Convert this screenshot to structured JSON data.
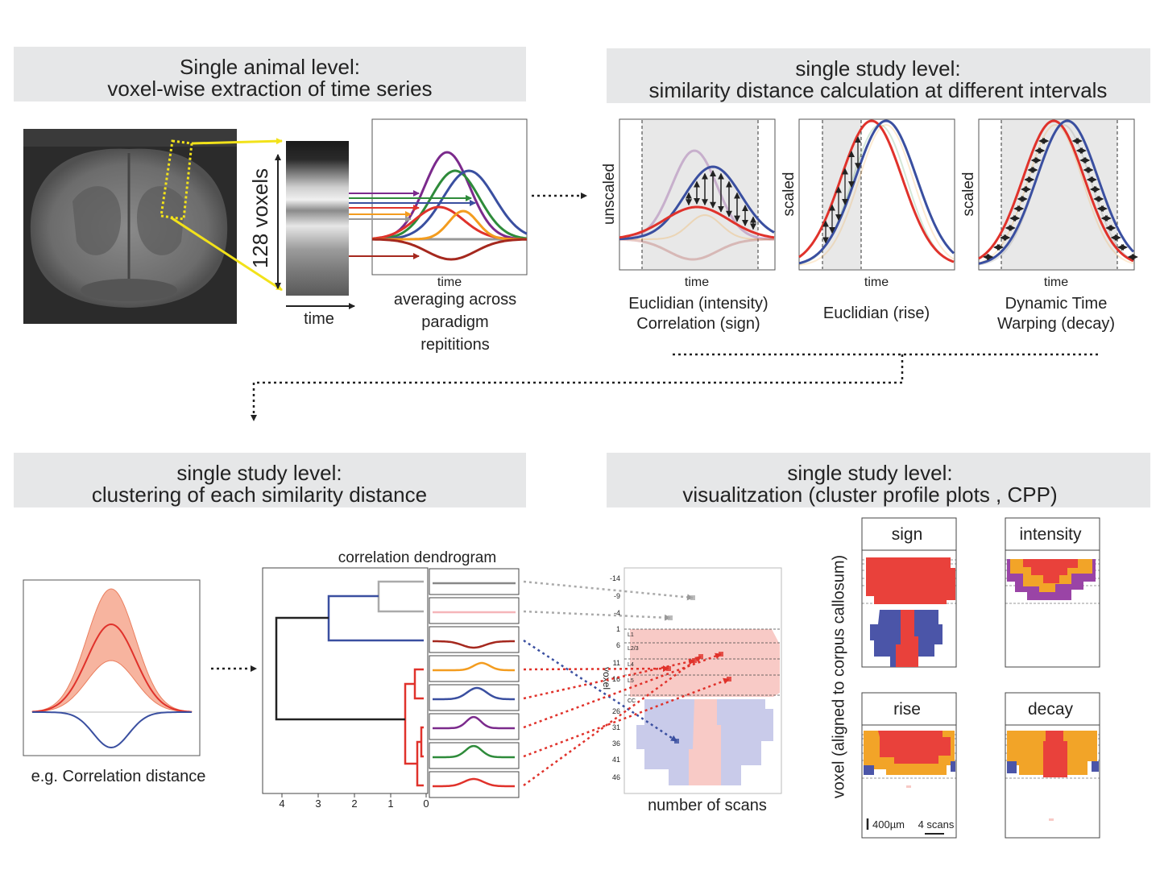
{
  "extraction": {
    "title": [
      "Single animal level:",
      "voxel-wise extraction of time series"
    ],
    "voxel_label": "128 voxels",
    "strip_axis": "time",
    "plot_axis": "time",
    "caption": [
      "averaging across",
      "paradigm",
      "repititions"
    ]
  },
  "distance": {
    "title": [
      "single study level:",
      "similarity distance calculation at different intervals"
    ],
    "plots": [
      {
        "y_label": "unscaled",
        "x_label": "time",
        "caption": [
          "Euclidian (intensity)",
          "Correlation (sign)"
        ]
      },
      {
        "y_label": "scaled",
        "x_label": "time",
        "caption": [
          "Euclidian (rise)"
        ]
      },
      {
        "y_label": "scaled",
        "x_label": "time",
        "caption": [
          "Dynamic Time",
          "Warping (decay)"
        ]
      }
    ]
  },
  "clustering": {
    "title": [
      "single study level:",
      "clustering of each similarity distance"
    ],
    "example_caption": "e.g. Correlation distance",
    "dendrogram_title": "correlation dendrogram",
    "dendrogram_ticks": [
      "4",
      "3",
      "2",
      "1",
      "0"
    ],
    "profile_y_label": "voxel",
    "profile_y_ticks": [
      "-14",
      "-9",
      "-4",
      "1",
      "6",
      "11",
      "16",
      "26",
      "31",
      "36",
      "41",
      "46"
    ],
    "layers": [
      "L1",
      "L2/3",
      "L4",
      "L5",
      "CC"
    ],
    "profile_x_label": "number of scans"
  },
  "visualization": {
    "title": [
      "single study level:",
      "visualitzation (cluster profile plots , CPP)"
    ],
    "y_label": "voxel (aligned to corpus callosum)",
    "plots": [
      "sign",
      "intensity",
      "rise",
      "decay"
    ],
    "scale_bar": [
      "400µm",
      "4 scans"
    ]
  }
}
